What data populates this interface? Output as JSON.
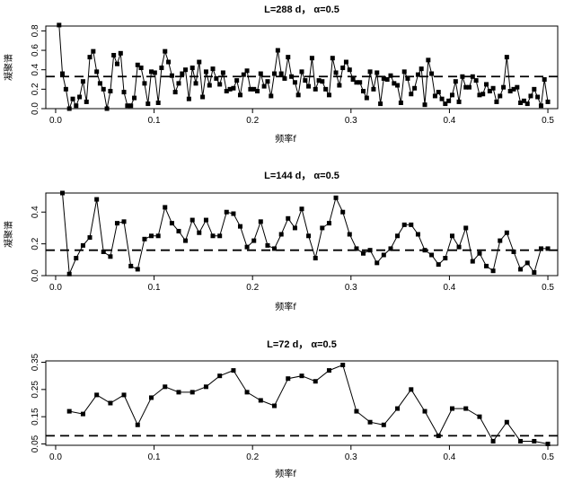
{
  "chart_data": [
    {
      "type": "line",
      "title": "L=288 d， α=0.5",
      "xlabel": "频率f",
      "ylabel": "凝聚谱",
      "xlim": [
        -0.01,
        0.51
      ],
      "ylim": [
        0.0,
        0.85
      ],
      "xticks": [
        "0.0",
        "0.1",
        "0.2",
        "0.3",
        "0.4",
        "0.5"
      ],
      "yticks": [
        "0.0",
        "0.2",
        "0.4",
        "0.6",
        "0.8"
      ],
      "threshold": 0.33,
      "x": [
        0.0035,
        0.0069,
        0.0104,
        0.0139,
        0.0174,
        0.0208,
        0.0243,
        0.0278,
        0.0313,
        0.0347,
        0.0382,
        0.0417,
        0.0451,
        0.0486,
        0.0521,
        0.0556,
        0.059,
        0.0625,
        0.066,
        0.0694,
        0.0729,
        0.0764,
        0.0799,
        0.0833,
        0.0868,
        0.0903,
        0.0938,
        0.0972,
        0.1007,
        0.1042,
        0.1076,
        0.1111,
        0.1146,
        0.1181,
        0.1215,
        0.125,
        0.1285,
        0.1319,
        0.1354,
        0.1389,
        0.1424,
        0.1458,
        0.1493,
        0.1528,
        0.1563,
        0.1597,
        0.1632,
        0.1667,
        0.1701,
        0.1736,
        0.1771,
        0.1806,
        0.184,
        0.1875,
        0.191,
        0.1944,
        0.1979,
        0.2014,
        0.2049,
        0.2083,
        0.2118,
        0.2153,
        0.2188,
        0.2222,
        0.2257,
        0.2292,
        0.2326,
        0.2361,
        0.2396,
        0.2431,
        0.2465,
        0.25,
        0.2535,
        0.2569,
        0.2604,
        0.2639,
        0.2674,
        0.2708,
        0.2743,
        0.2778,
        0.2813,
        0.2847,
        0.2882,
        0.2917,
        0.2951,
        0.2986,
        0.3021,
        0.3056,
        0.309,
        0.3125,
        0.316,
        0.3194,
        0.3229,
        0.3264,
        0.3299,
        0.3333,
        0.3368,
        0.3403,
        0.3438,
        0.3472,
        0.3507,
        0.3542,
        0.3576,
        0.3611,
        0.3646,
        0.3681,
        0.3715,
        0.375,
        0.3785,
        0.3819,
        0.3854,
        0.3889,
        0.3924,
        0.3958,
        0.3993,
        0.4028,
        0.4063,
        0.4097,
        0.4132,
        0.4167,
        0.4201,
        0.4236,
        0.4271,
        0.4306,
        0.434,
        0.4375,
        0.441,
        0.4444,
        0.4479,
        0.4514,
        0.4549,
        0.4583,
        0.4618,
        0.4653,
        0.4688,
        0.4722,
        0.4757,
        0.4792,
        0.4826,
        0.4861,
        0.4896,
        0.4931,
        0.4965,
        0.5
      ],
      "y": [
        0.86,
        0.36,
        0.2,
        0.0,
        0.1,
        0.03,
        0.12,
        0.28,
        0.07,
        0.53,
        0.59,
        0.38,
        0.26,
        0.2,
        0.0,
        0.18,
        0.55,
        0.46,
        0.57,
        0.17,
        0.03,
        0.03,
        0.11,
        0.45,
        0.42,
        0.26,
        0.05,
        0.38,
        0.37,
        0.06,
        0.42,
        0.59,
        0.48,
        0.34,
        0.17,
        0.26,
        0.36,
        0.4,
        0.1,
        0.42,
        0.26,
        0.48,
        0.12,
        0.38,
        0.24,
        0.41,
        0.31,
        0.25,
        0.37,
        0.18,
        0.2,
        0.21,
        0.29,
        0.14,
        0.35,
        0.39,
        0.2,
        0.2,
        0.18,
        0.36,
        0.23,
        0.28,
        0.13,
        0.36,
        0.6,
        0.36,
        0.31,
        0.53,
        0.33,
        0.27,
        0.14,
        0.38,
        0.29,
        0.23,
        0.52,
        0.2,
        0.29,
        0.28,
        0.2,
        0.14,
        0.52,
        0.37,
        0.24,
        0.42,
        0.48,
        0.4,
        0.3,
        0.27,
        0.27,
        0.18,
        0.11,
        0.38,
        0.2,
        0.37,
        0.05,
        0.31,
        0.3,
        0.34,
        0.26,
        0.24,
        0.06,
        0.38,
        0.31,
        0.15,
        0.21,
        0.35,
        0.41,
        0.04,
        0.5,
        0.36,
        0.13,
        0.17,
        0.1,
        0.05,
        0.08,
        0.14,
        0.28,
        0.07,
        0.33,
        0.22,
        0.22,
        0.33,
        0.29,
        0.14,
        0.15,
        0.25,
        0.18,
        0.21,
        0.07,
        0.13,
        0.22,
        0.53,
        0.18,
        0.2,
        0.22,
        0.06,
        0.08,
        0.05,
        0.13,
        0.2,
        0.12,
        0.03,
        0.3,
        0.07
      ]
    },
    {
      "type": "line",
      "title": "L=144 d， α=0.5",
      "xlabel": "频率f",
      "ylabel": "凝聚谱",
      "xlim": [
        -0.01,
        0.51
      ],
      "ylim": [
        0.0,
        0.52
      ],
      "xticks": [
        "0.0",
        "0.1",
        "0.2",
        "0.3",
        "0.4",
        "0.5"
      ],
      "yticks": [
        "0.0",
        "0.2",
        "0.4"
      ],
      "threshold": 0.16,
      "x": [
        0.0069,
        0.0139,
        0.0208,
        0.0278,
        0.0347,
        0.0417,
        0.0486,
        0.0556,
        0.0625,
        0.0694,
        0.0764,
        0.0833,
        0.0903,
        0.0972,
        0.1042,
        0.1111,
        0.1181,
        0.125,
        0.1319,
        0.1389,
        0.1458,
        0.1528,
        0.1597,
        0.1667,
        0.1736,
        0.1806,
        0.1875,
        0.1944,
        0.2014,
        0.2083,
        0.2153,
        0.2222,
        0.2292,
        0.2361,
        0.2431,
        0.25,
        0.2569,
        0.2639,
        0.2708,
        0.2778,
        0.2847,
        0.2917,
        0.2986,
        0.3056,
        0.3125,
        0.3194,
        0.3264,
        0.3333,
        0.3403,
        0.3472,
        0.3542,
        0.3611,
        0.3681,
        0.375,
        0.3819,
        0.3889,
        0.3958,
        0.4028,
        0.4097,
        0.4167,
        0.4236,
        0.4306,
        0.4375,
        0.4444,
        0.4514,
        0.4583,
        0.4653,
        0.4722,
        0.4792,
        0.4861,
        0.4931,
        0.5
      ],
      "y": [
        0.52,
        0.01,
        0.11,
        0.19,
        0.24,
        0.48,
        0.15,
        0.12,
        0.33,
        0.34,
        0.06,
        0.04,
        0.23,
        0.25,
        0.25,
        0.43,
        0.33,
        0.28,
        0.22,
        0.35,
        0.27,
        0.35,
        0.25,
        0.25,
        0.4,
        0.39,
        0.31,
        0.18,
        0.22,
        0.34,
        0.19,
        0.17,
        0.26,
        0.36,
        0.3,
        0.42,
        0.25,
        0.11,
        0.3,
        0.33,
        0.49,
        0.4,
        0.26,
        0.17,
        0.14,
        0.16,
        0.08,
        0.13,
        0.17,
        0.25,
        0.32,
        0.32,
        0.26,
        0.16,
        0.13,
        0.07,
        0.11,
        0.25,
        0.18,
        0.3,
        0.09,
        0.14,
        0.06,
        0.03,
        0.22,
        0.27,
        0.15,
        0.04,
        0.08,
        0.02,
        0.17,
        0.17
      ]
    },
    {
      "type": "line",
      "title": "L=72 d， α=0.5",
      "xlabel": "频率f",
      "ylabel": "",
      "xlim": [
        -0.01,
        0.51
      ],
      "ylim": [
        0.045,
        0.355
      ],
      "xticks": [
        "0.0",
        "0.1",
        "0.2",
        "0.3",
        "0.4",
        "0.5"
      ],
      "yticks": [
        "0.05",
        "0.15",
        "0.25",
        "0.35"
      ],
      "threshold": 0.08,
      "x": [
        0.0139,
        0.0278,
        0.0417,
        0.0556,
        0.0694,
        0.0833,
        0.0972,
        0.1111,
        0.125,
        0.1389,
        0.1528,
        0.1667,
        0.1806,
        0.1944,
        0.2083,
        0.2222,
        0.2361,
        0.25,
        0.2639,
        0.2778,
        0.2917,
        0.3056,
        0.3194,
        0.3333,
        0.3472,
        0.3611,
        0.375,
        0.3889,
        0.4028,
        0.4167,
        0.4306,
        0.4444,
        0.4583,
        0.4722,
        0.4861,
        0.5
      ],
      "y": [
        0.17,
        0.16,
        0.23,
        0.2,
        0.23,
        0.12,
        0.22,
        0.26,
        0.24,
        0.24,
        0.26,
        0.3,
        0.32,
        0.24,
        0.21,
        0.19,
        0.29,
        0.3,
        0.28,
        0.32,
        0.34,
        0.17,
        0.13,
        0.12,
        0.18,
        0.25,
        0.17,
        0.08,
        0.18,
        0.18,
        0.15,
        0.06,
        0.13,
        0.06,
        0.06,
        0.05
      ]
    }
  ]
}
